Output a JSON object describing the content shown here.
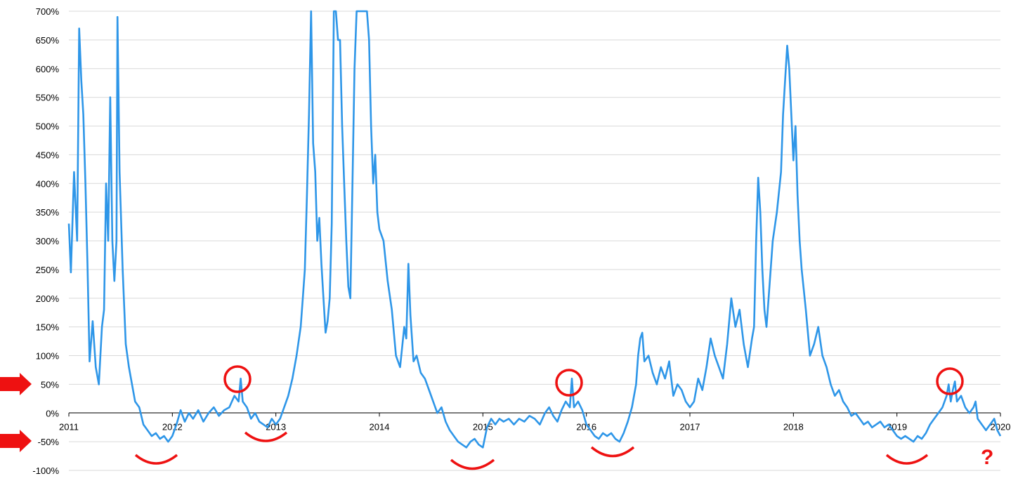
{
  "chart_data": {
    "type": "line",
    "title": "",
    "xlabel": "",
    "ylabel": "",
    "x_ticks": [
      "2011",
      "2012",
      "2013",
      "2014",
      "2015",
      "2016",
      "2017",
      "2018",
      "2019",
      "2020"
    ],
    "y_ticks": [
      "700%",
      "650%",
      "600%",
      "550%",
      "500%",
      "450%",
      "400%",
      "350%",
      "300%",
      "250%",
      "200%",
      "150%",
      "100%",
      "50%",
      "0%",
      "-50%",
      "-100%"
    ],
    "xlim": [
      2011,
      2020
    ],
    "ylim": [
      -100,
      700
    ],
    "grid": true,
    "series": [
      {
        "points": [
          [
            2011.0,
            330
          ],
          [
            2011.02,
            245
          ],
          [
            2011.05,
            420
          ],
          [
            2011.08,
            300
          ],
          [
            2011.1,
            670
          ],
          [
            2011.12,
            580
          ],
          [
            2011.14,
            520
          ],
          [
            2011.16,
            400
          ],
          [
            2011.18,
            260
          ],
          [
            2011.2,
            90
          ],
          [
            2011.23,
            160
          ],
          [
            2011.26,
            80
          ],
          [
            2011.29,
            50
          ],
          [
            2011.32,
            150
          ],
          [
            2011.34,
            180
          ],
          [
            2011.36,
            400
          ],
          [
            2011.38,
            300
          ],
          [
            2011.4,
            550
          ],
          [
            2011.42,
            300
          ],
          [
            2011.44,
            230
          ],
          [
            2011.46,
            300
          ],
          [
            2011.47,
            690
          ],
          [
            2011.49,
            420
          ],
          [
            2011.52,
            250
          ],
          [
            2011.55,
            120
          ],
          [
            2011.58,
            80
          ],
          [
            2011.61,
            50
          ],
          [
            2011.64,
            20
          ],
          [
            2011.68,
            10
          ],
          [
            2011.72,
            -20
          ],
          [
            2011.76,
            -30
          ],
          [
            2011.8,
            -40
          ],
          [
            2011.84,
            -35
          ],
          [
            2011.88,
            -45
          ],
          [
            2011.92,
            -40
          ],
          [
            2011.96,
            -50
          ],
          [
            2012.0,
            -40
          ],
          [
            2012.04,
            -20
          ],
          [
            2012.08,
            5
          ],
          [
            2012.12,
            -15
          ],
          [
            2012.16,
            0
          ],
          [
            2012.2,
            -10
          ],
          [
            2012.25,
            5
          ],
          [
            2012.3,
            -15
          ],
          [
            2012.35,
            0
          ],
          [
            2012.4,
            10
          ],
          [
            2012.45,
            -5
          ],
          [
            2012.5,
            5
          ],
          [
            2012.55,
            10
          ],
          [
            2012.6,
            30
          ],
          [
            2012.64,
            20
          ],
          [
            2012.66,
            60
          ],
          [
            2012.68,
            20
          ],
          [
            2012.72,
            10
          ],
          [
            2012.76,
            -10
          ],
          [
            2012.8,
            0
          ],
          [
            2012.84,
            -15
          ],
          [
            2012.88,
            -20
          ],
          [
            2012.92,
            -25
          ],
          [
            2012.96,
            -10
          ],
          [
            2013.0,
            -20
          ],
          [
            2013.04,
            -10
          ],
          [
            2013.08,
            10
          ],
          [
            2013.12,
            30
          ],
          [
            2013.16,
            60
          ],
          [
            2013.2,
            100
          ],
          [
            2013.24,
            150
          ],
          [
            2013.26,
            200
          ],
          [
            2013.28,
            250
          ],
          [
            2013.3,
            380
          ],
          [
            2013.32,
            520
          ],
          [
            2013.34,
            700
          ],
          [
            2013.36,
            470
          ],
          [
            2013.38,
            420
          ],
          [
            2013.4,
            300
          ],
          [
            2013.42,
            340
          ],
          [
            2013.44,
            260
          ],
          [
            2013.46,
            200
          ],
          [
            2013.48,
            140
          ],
          [
            2013.5,
            160
          ],
          [
            2013.52,
            200
          ],
          [
            2013.54,
            330
          ],
          [
            2013.56,
            700
          ],
          [
            2013.58,
            700
          ],
          [
            2013.6,
            650
          ],
          [
            2013.62,
            650
          ],
          [
            2013.64,
            500
          ],
          [
            2013.66,
            400
          ],
          [
            2013.68,
            300
          ],
          [
            2013.7,
            220
          ],
          [
            2013.72,
            200
          ],
          [
            2013.74,
            400
          ],
          [
            2013.76,
            600
          ],
          [
            2013.78,
            700
          ],
          [
            2013.8,
            700
          ],
          [
            2013.82,
            700
          ],
          [
            2013.84,
            700
          ],
          [
            2013.86,
            700
          ],
          [
            2013.88,
            700
          ],
          [
            2013.9,
            650
          ],
          [
            2013.92,
            500
          ],
          [
            2013.94,
            400
          ],
          [
            2013.96,
            450
          ],
          [
            2013.98,
            350
          ],
          [
            2014.0,
            320
          ],
          [
            2014.04,
            300
          ],
          [
            2014.08,
            230
          ],
          [
            2014.12,
            180
          ],
          [
            2014.16,
            100
          ],
          [
            2014.2,
            80
          ],
          [
            2014.24,
            150
          ],
          [
            2014.26,
            130
          ],
          [
            2014.28,
            260
          ],
          [
            2014.3,
            170
          ],
          [
            2014.33,
            90
          ],
          [
            2014.36,
            100
          ],
          [
            2014.4,
            70
          ],
          [
            2014.44,
            60
          ],
          [
            2014.48,
            40
          ],
          [
            2014.52,
            20
          ],
          [
            2014.56,
            0
          ],
          [
            2014.6,
            10
          ],
          [
            2014.64,
            -15
          ],
          [
            2014.68,
            -30
          ],
          [
            2014.72,
            -40
          ],
          [
            2014.76,
            -50
          ],
          [
            2014.8,
            -55
          ],
          [
            2014.84,
            -60
          ],
          [
            2014.88,
            -50
          ],
          [
            2014.92,
            -45
          ],
          [
            2014.96,
            -55
          ],
          [
            2015.0,
            -60
          ],
          [
            2015.04,
            -25
          ],
          [
            2015.08,
            -10
          ],
          [
            2015.12,
            -20
          ],
          [
            2015.16,
            -10
          ],
          [
            2015.2,
            -15
          ],
          [
            2015.25,
            -10
          ],
          [
            2015.3,
            -20
          ],
          [
            2015.35,
            -10
          ],
          [
            2015.4,
            -15
          ],
          [
            2015.45,
            -5
          ],
          [
            2015.5,
            -10
          ],
          [
            2015.55,
            -20
          ],
          [
            2015.6,
            0
          ],
          [
            2015.64,
            10
          ],
          [
            2015.68,
            -5
          ],
          [
            2015.72,
            -15
          ],
          [
            2015.76,
            5
          ],
          [
            2015.8,
            20
          ],
          [
            2015.84,
            10
          ],
          [
            2015.86,
            60
          ],
          [
            2015.88,
            10
          ],
          [
            2015.92,
            20
          ],
          [
            2015.96,
            5
          ],
          [
            2016.0,
            -20
          ],
          [
            2016.04,
            -30
          ],
          [
            2016.08,
            -40
          ],
          [
            2016.12,
            -45
          ],
          [
            2016.16,
            -35
          ],
          [
            2016.2,
            -40
          ],
          [
            2016.24,
            -35
          ],
          [
            2016.28,
            -45
          ],
          [
            2016.32,
            -50
          ],
          [
            2016.36,
            -35
          ],
          [
            2016.4,
            -15
          ],
          [
            2016.44,
            10
          ],
          [
            2016.48,
            50
          ],
          [
            2016.5,
            100
          ],
          [
            2016.52,
            130
          ],
          [
            2016.54,
            140
          ],
          [
            2016.56,
            90
          ],
          [
            2016.6,
            100
          ],
          [
            2016.64,
            70
          ],
          [
            2016.68,
            50
          ],
          [
            2016.72,
            80
          ],
          [
            2016.76,
            60
          ],
          [
            2016.8,
            90
          ],
          [
            2016.84,
            30
          ],
          [
            2016.88,
            50
          ],
          [
            2016.92,
            40
          ],
          [
            2016.96,
            20
          ],
          [
            2017.0,
            10
          ],
          [
            2017.04,
            20
          ],
          [
            2017.08,
            60
          ],
          [
            2017.12,
            40
          ],
          [
            2017.16,
            80
          ],
          [
            2017.2,
            130
          ],
          [
            2017.24,
            100
          ],
          [
            2017.28,
            80
          ],
          [
            2017.32,
            60
          ],
          [
            2017.36,
            120
          ],
          [
            2017.4,
            200
          ],
          [
            2017.44,
            150
          ],
          [
            2017.48,
            180
          ],
          [
            2017.52,
            120
          ],
          [
            2017.56,
            80
          ],
          [
            2017.6,
            130
          ],
          [
            2017.62,
            150
          ],
          [
            2017.64,
            300
          ],
          [
            2017.66,
            410
          ],
          [
            2017.68,
            350
          ],
          [
            2017.7,
            250
          ],
          [
            2017.72,
            180
          ],
          [
            2017.74,
            150
          ],
          [
            2017.76,
            200
          ],
          [
            2017.8,
            300
          ],
          [
            2017.84,
            350
          ],
          [
            2017.88,
            420
          ],
          [
            2017.9,
            520
          ],
          [
            2017.92,
            580
          ],
          [
            2017.94,
            640
          ],
          [
            2017.96,
            600
          ],
          [
            2018.0,
            440
          ],
          [
            2018.02,
            500
          ],
          [
            2018.04,
            380
          ],
          [
            2018.06,
            300
          ],
          [
            2018.08,
            250
          ],
          [
            2018.12,
            180
          ],
          [
            2018.16,
            100
          ],
          [
            2018.2,
            120
          ],
          [
            2018.24,
            150
          ],
          [
            2018.28,
            100
          ],
          [
            2018.32,
            80
          ],
          [
            2018.36,
            50
          ],
          [
            2018.4,
            30
          ],
          [
            2018.44,
            40
          ],
          [
            2018.48,
            20
          ],
          [
            2018.52,
            10
          ],
          [
            2018.56,
            -5
          ],
          [
            2018.6,
            0
          ],
          [
            2018.64,
            -10
          ],
          [
            2018.68,
            -20
          ],
          [
            2018.72,
            -15
          ],
          [
            2018.76,
            -25
          ],
          [
            2018.8,
            -20
          ],
          [
            2018.84,
            -15
          ],
          [
            2018.88,
            -25
          ],
          [
            2018.92,
            -20
          ],
          [
            2018.96,
            -30
          ],
          [
            2019.0,
            -40
          ],
          [
            2019.04,
            -45
          ],
          [
            2019.08,
            -40
          ],
          [
            2019.12,
            -45
          ],
          [
            2019.16,
            -50
          ],
          [
            2019.2,
            -40
          ],
          [
            2019.24,
            -45
          ],
          [
            2019.28,
            -35
          ],
          [
            2019.32,
            -20
          ],
          [
            2019.36,
            -10
          ],
          [
            2019.4,
            0
          ],
          [
            2019.44,
            10
          ],
          [
            2019.48,
            30
          ],
          [
            2019.5,
            50
          ],
          [
            2019.52,
            20
          ],
          [
            2019.54,
            40
          ],
          [
            2019.56,
            55
          ],
          [
            2019.58,
            20
          ],
          [
            2019.62,
            30
          ],
          [
            2019.66,
            10
          ],
          [
            2019.7,
            0
          ],
          [
            2019.74,
            10
          ],
          [
            2019.76,
            20
          ],
          [
            2019.78,
            -10
          ],
          [
            2019.82,
            -20
          ],
          [
            2019.86,
            -30
          ],
          [
            2019.9,
            -20
          ],
          [
            2019.94,
            -10
          ],
          [
            2019.97,
            -30
          ],
          [
            2020.0,
            -40
          ]
        ]
      }
    ]
  },
  "annotations": {
    "arrows": [
      "arrow-at-50",
      "arrow-at-minus-50"
    ],
    "question_mark": "?",
    "accent_color": "#ee1111",
    "series_color": "#2e96e8"
  }
}
